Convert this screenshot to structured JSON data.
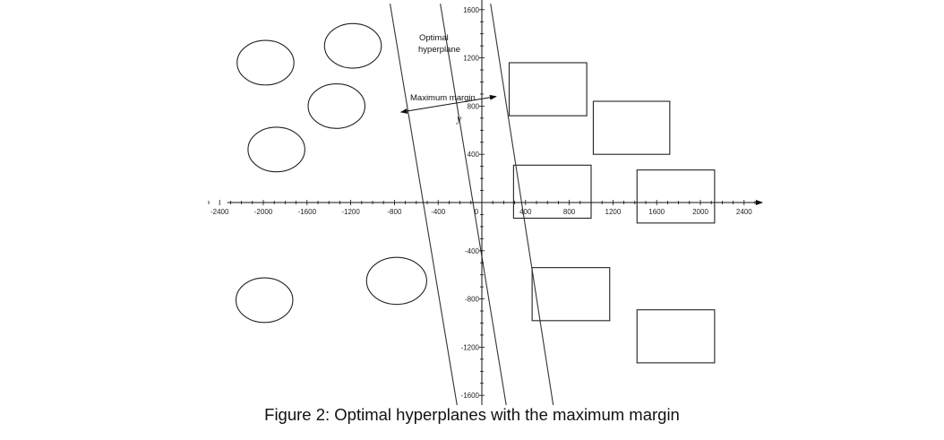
{
  "figure": {
    "caption": "Figure 2: Optimal hyperplanes with the maximum margin",
    "annotations": {
      "optimal_line1": "Optimal",
      "optimal_line2": "hyperplane",
      "margin": "Maximum margin",
      "variable": "y"
    },
    "axes": {
      "x_ticks": [
        -2400,
        -2000,
        -1600,
        -1200,
        -800,
        -400,
        0,
        400,
        800,
        1200,
        1600,
        2000,
        2400
      ],
      "y_ticks": [
        1600,
        1200,
        800,
        400,
        -400,
        -800,
        -1200,
        -1600
      ],
      "x_range": [
        -2600,
        2500
      ],
      "y_range": [
        -1750,
        1700
      ]
    },
    "class_a_ellipses": [
      {
        "x": -1980,
        "y": 1160,
        "rx": 260,
        "ry": 185
      },
      {
        "x": -1180,
        "y": 1300,
        "rx": 260,
        "ry": 185
      },
      {
        "x": -1330,
        "y": 800,
        "rx": 260,
        "ry": 185
      },
      {
        "x": -1880,
        "y": 440,
        "rx": 260,
        "ry": 185
      },
      {
        "x": -1990,
        "y": -810,
        "rx": 260,
        "ry": 185
      },
      {
        "x": -780,
        "y": -650,
        "rx": 275,
        "ry": 195
      }
    ],
    "class_b_rectangles": [
      {
        "x": 250,
        "y": 1160,
        "w": 710,
        "h": 440
      },
      {
        "x": 1020,
        "y": 840,
        "w": 700,
        "h": 440
      },
      {
        "x": 290,
        "y": 310,
        "w": 710,
        "h": 440
      },
      {
        "x": 1420,
        "y": 270,
        "w": 710,
        "h": 440
      },
      {
        "x": 460,
        "y": -540,
        "w": 710,
        "h": 440
      },
      {
        "x": 1420,
        "y": -890,
        "w": 710,
        "h": 440
      }
    ],
    "hyperplanes": [
      {
        "x1": -840,
        "y1": 1650,
        "x2": -220,
        "y2": -1720
      },
      {
        "x1": -380,
        "y1": 1650,
        "x2": 230,
        "y2": -1720
      },
      {
        "x1": 80,
        "y1": 1650,
        "x2": 660,
        "y2": -1720
      }
    ],
    "margin_arrow": {
      "x1": -740,
      "y1": 750,
      "x2": 130,
      "y2": 880
    }
  }
}
